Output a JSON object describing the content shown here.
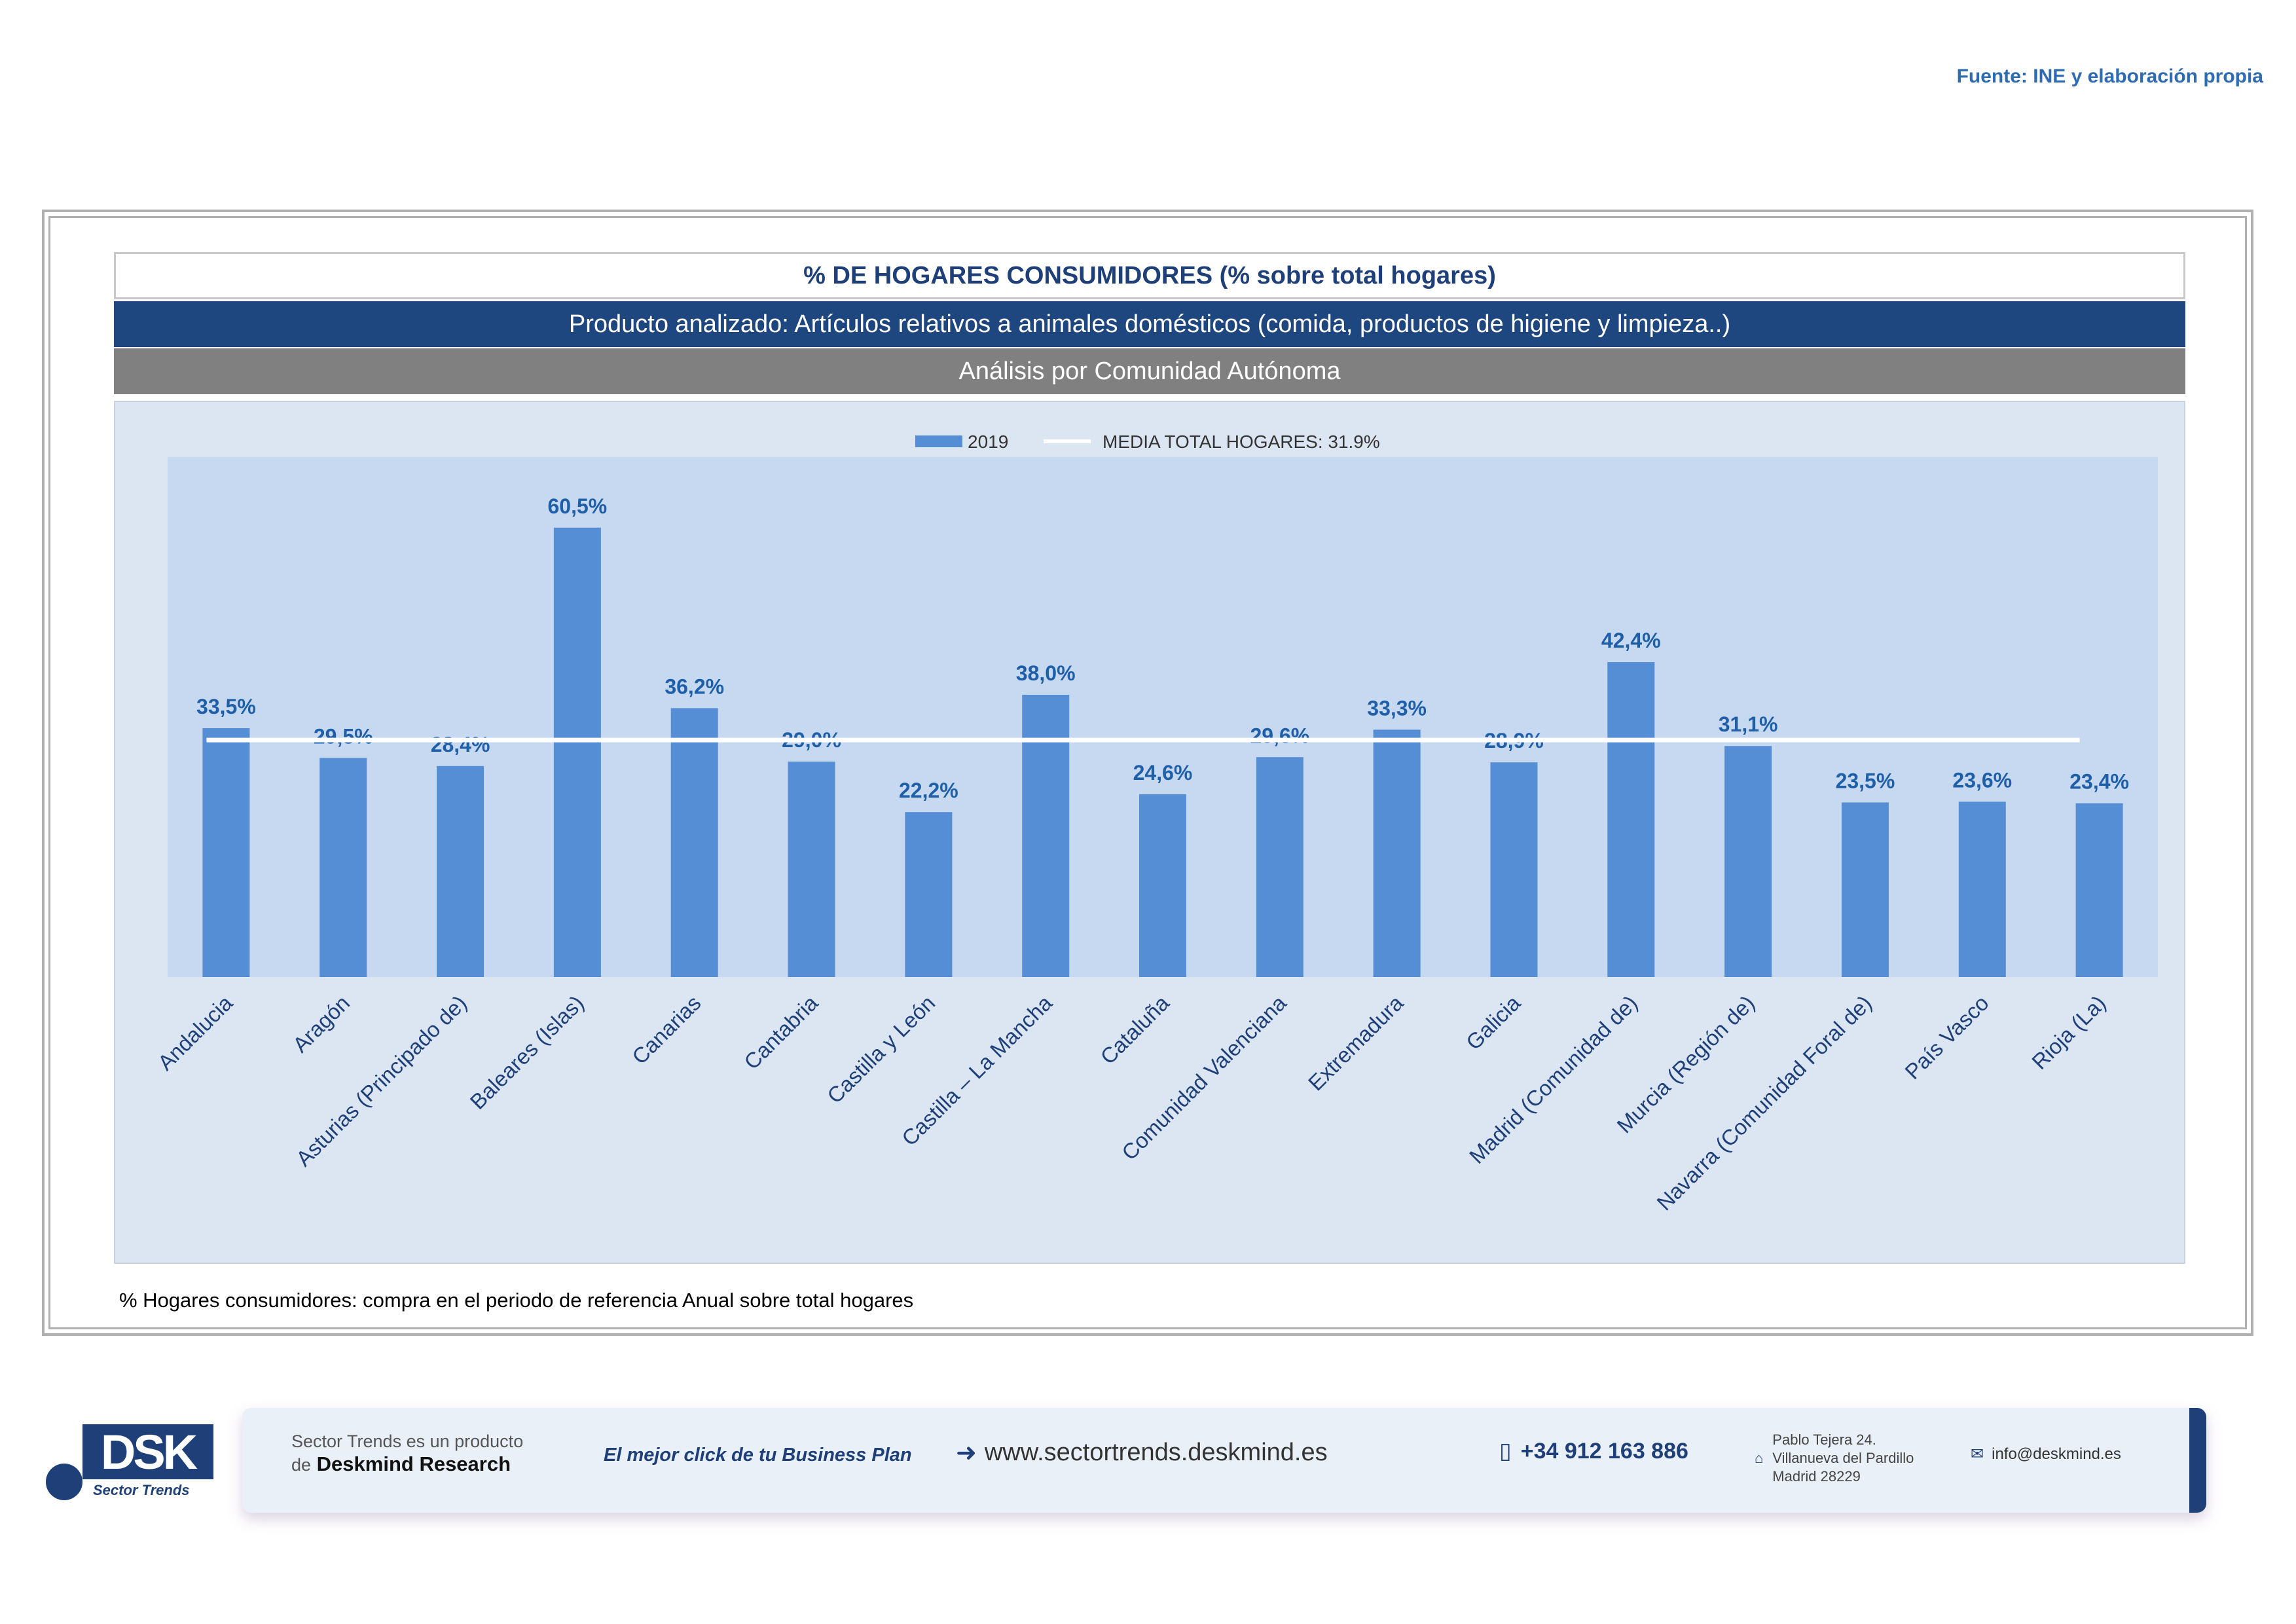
{
  "source": "Fuente: INE y elaboración propia",
  "header": {
    "title": "% DE HOGARES CONSUMIDORES (% sobre total hogares)",
    "product": "Producto analizado: Artículos relativos a animales domésticos (comida, productos de higiene y limpieza..)",
    "analysis": "Análisis por Comunidad Autónoma"
  },
  "footnote": "% Hogares consumidores: compra en el periodo de referencia Anual sobre total hogares",
  "colors": {
    "bar": "#558ed5",
    "plot_bg": "#c6d9f1",
    "label": "#1f5fa8",
    "header_blue": "#1e467f"
  },
  "chart_data": {
    "type": "bar",
    "title": "% DE HOGARES CONSUMIDORES (% sobre total hogares)",
    "legend_placement": "top-center",
    "ylim": [
      0,
      70
    ],
    "grid": false,
    "categories": [
      "Andalucia",
      "Aragón",
      "Asturias (Principado de)",
      "Baleares (Islas)",
      "Canarias",
      "Cantabria",
      "Castilla y León",
      "Castilla – La Mancha",
      "Cataluña",
      "Comunidad Valenciana",
      "Extremadura",
      "Galicia",
      "Madrid (Comunidad de)",
      "Murcia (Región de)",
      "Navarra (Comunidad Foral de)",
      "País Vasco",
      "Rioja (La)"
    ],
    "series": [
      {
        "name": "2019",
        "values": [
          33.5,
          29.5,
          28.4,
          60.5,
          36.2,
          29.0,
          22.2,
          38.0,
          24.6,
          29.6,
          33.3,
          28.9,
          42.4,
          31.1,
          23.5,
          23.6,
          23.4
        ]
      }
    ],
    "value_labels": [
      "33,5%",
      "29,5%",
      "28,4%",
      "60,5%",
      "36,2%",
      "29,0%",
      "22,2%",
      "38,0%",
      "24,6%",
      "29,6%",
      "33,3%",
      "28,9%",
      "42,4%",
      "31,1%",
      "23,5%",
      "23,6%",
      "23,4%"
    ],
    "reference_line": {
      "name": "MEDIA TOTAL  HOGARES:  31.9%",
      "value": 31.9
    }
  },
  "banner": {
    "logo_text": "DSK",
    "logo_sub": "Sector Trends",
    "line1": "Sector Trends es un producto",
    "line2_prefix": "de",
    "line2_brand": "Deskmind Research",
    "slogan": "El mejor click de tu Business Plan",
    "website": "www.sectortrends.deskmind.es",
    "phone": "+34 912 163 886",
    "address1": "Pablo Tejera 24.",
    "address2": "Villanueva del Pardillo",
    "address3": "Madrid 28229",
    "email": "info@deskmind.es",
    "icons": {
      "website": "arrow-in-icon",
      "phone": "phone-icon",
      "address": "home-icon",
      "email": "mail-icon"
    }
  }
}
